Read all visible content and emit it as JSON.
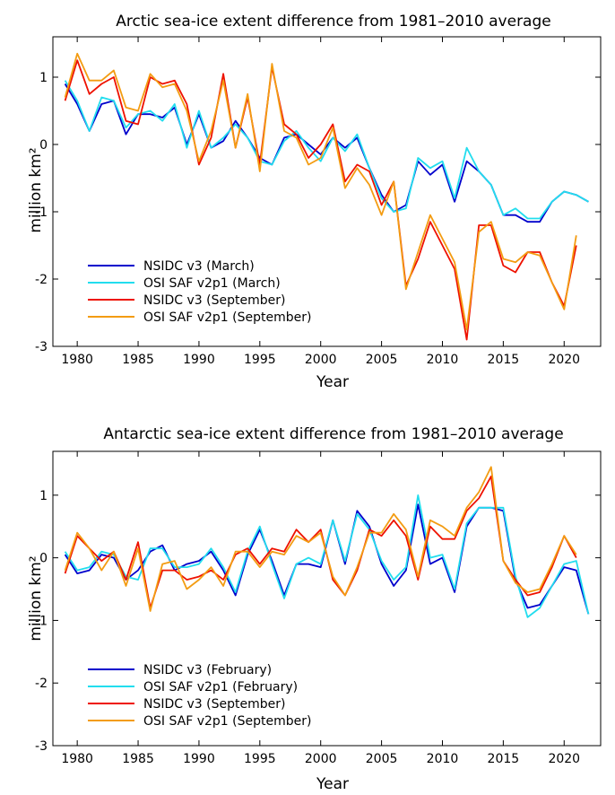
{
  "chart_data": [
    {
      "type": "line",
      "title": "Arctic sea-ice extent difference from 1981–2010 average",
      "xlabel": "Year",
      "ylabel": "million km²",
      "xlim": [
        1978,
        2023
      ],
      "ylim": [
        -3,
        1.6
      ],
      "x_ticks": [
        1980,
        1985,
        1990,
        1995,
        2000,
        2005,
        2010,
        2015,
        2020
      ],
      "y_ticks": [
        -3,
        -2,
        -1,
        0,
        1
      ],
      "legend_position": "lower-left",
      "series": [
        {
          "name": "NSIDC v3 (March)",
          "color": "#0000cc",
          "x": [
            1979,
            1980,
            1981,
            1982,
            1983,
            1984,
            1985,
            1986,
            1987,
            1988,
            1989,
            1990,
            1991,
            1992,
            1993,
            1994,
            1995,
            1996,
            1997,
            1998,
            1999,
            2000,
            2001,
            2002,
            2003,
            2004,
            2005,
            2006,
            2007,
            2008,
            2009,
            2010,
            2011,
            2012,
            2013,
            2014,
            2015,
            2016,
            2017,
            2018,
            2019,
            2020,
            2021,
            2022
          ],
          "y": [
            0.9,
            0.6,
            0.2,
            0.6,
            0.65,
            0.15,
            0.45,
            0.45,
            0.4,
            0.55,
            0.0,
            0.45,
            -0.05,
            0.05,
            0.35,
            0.1,
            -0.2,
            -0.3,
            0.1,
            0.15,
            0.0,
            -0.15,
            0.1,
            -0.05,
            0.1,
            -0.35,
            -0.75,
            -1.0,
            -0.9,
            -0.25,
            -0.45,
            -0.3,
            -0.85,
            -0.25,
            -0.4,
            -0.6,
            -1.05,
            -1.05,
            -1.15,
            -1.15,
            -0.85,
            -0.7,
            -0.75,
            -0.85
          ]
        },
        {
          "name": "OSI SAF v2p1 (March)",
          "color": "#22ddee",
          "x": [
            1979,
            1980,
            1981,
            1982,
            1983,
            1984,
            1985,
            1986,
            1987,
            1988,
            1989,
            1990,
            1991,
            1992,
            1993,
            1994,
            1995,
            1996,
            1997,
            1998,
            1999,
            2000,
            2001,
            2002,
            2003,
            2004,
            2005,
            2006,
            2007,
            2008,
            2009,
            2010,
            2011,
            2012,
            2013,
            2014,
            2015,
            2016,
            2017,
            2018,
            2019,
            2020,
            2021,
            2022
          ],
          "y": [
            0.95,
            0.65,
            0.2,
            0.7,
            0.65,
            0.25,
            0.45,
            0.5,
            0.35,
            0.6,
            -0.05,
            0.5,
            -0.05,
            0.1,
            0.3,
            0.1,
            -0.25,
            -0.3,
            0.05,
            0.2,
            -0.05,
            -0.25,
            0.1,
            -0.1,
            0.15,
            -0.35,
            -0.8,
            -1.0,
            -0.95,
            -0.2,
            -0.35,
            -0.25,
            -0.8,
            -0.05,
            -0.4,
            -0.6,
            -1.05,
            -0.95,
            -1.1,
            -1.1,
            -0.85,
            -0.7,
            -0.75,
            -0.85
          ]
        },
        {
          "name": "NSIDC v3 (September)",
          "color": "#ee1100",
          "x": [
            1979,
            1980,
            1981,
            1982,
            1983,
            1984,
            1985,
            1986,
            1987,
            1988,
            1989,
            1990,
            1991,
            1992,
            1993,
            1994,
            1995,
            1996,
            1997,
            1998,
            1999,
            2000,
            2001,
            2002,
            2003,
            2004,
            2005,
            2006,
            2007,
            2008,
            2009,
            2010,
            2011,
            2012,
            2013,
            2014,
            2015,
            2016,
            2017,
            2018,
            2019,
            2020,
            2021
          ],
          "y": [
            0.65,
            1.25,
            0.75,
            0.9,
            1.0,
            0.35,
            0.3,
            1.0,
            0.9,
            0.95,
            0.6,
            -0.3,
            0.1,
            1.05,
            -0.05,
            0.7,
            -0.3,
            1.15,
            0.3,
            0.15,
            -0.2,
            0.0,
            0.3,
            -0.55,
            -0.3,
            -0.4,
            -0.9,
            -0.55,
            -2.1,
            -1.7,
            -1.15,
            -1.5,
            -1.85,
            -2.9,
            -1.2,
            -1.2,
            -1.8,
            -1.9,
            -1.6,
            -1.6,
            -2.05,
            -2.4,
            -1.5
          ]
        },
        {
          "name": "OSI SAF v2p1 (September)",
          "color": "#f39c12",
          "x": [
            1979,
            1980,
            1981,
            1982,
            1983,
            1984,
            1985,
            1986,
            1987,
            1988,
            1989,
            1990,
            1991,
            1992,
            1993,
            1994,
            1995,
            1996,
            1997,
            1998,
            1999,
            2000,
            2001,
            2002,
            2003,
            2004,
            2005,
            2006,
            2007,
            2008,
            2009,
            2010,
            2011,
            2012,
            2013,
            2014,
            2015,
            2016,
            2017,
            2018,
            2019,
            2020,
            2021
          ],
          "y": [
            0.7,
            1.35,
            0.95,
            0.95,
            1.1,
            0.55,
            0.5,
            1.05,
            0.85,
            0.9,
            0.5,
            -0.25,
            0.2,
            0.95,
            -0.05,
            0.75,
            -0.4,
            1.2,
            0.2,
            0.1,
            -0.3,
            -0.2,
            0.25,
            -0.65,
            -0.35,
            -0.6,
            -1.05,
            -0.55,
            -2.15,
            -1.6,
            -1.05,
            -1.4,
            -1.75,
            -2.75,
            -1.3,
            -1.15,
            -1.7,
            -1.75,
            -1.6,
            -1.65,
            -2.05,
            -2.45,
            -1.35
          ]
        }
      ]
    },
    {
      "type": "line",
      "title": "Antarctic sea-ice extent difference from 1981–2010 average",
      "xlabel": "Year",
      "ylabel": "million km²",
      "xlim": [
        1978,
        2023
      ],
      "ylim": [
        -3,
        1.7
      ],
      "x_ticks": [
        1980,
        1985,
        1990,
        1995,
        2000,
        2005,
        2010,
        2015,
        2020
      ],
      "y_ticks": [
        -3,
        -2,
        -1,
        0,
        1
      ],
      "legend_position": "lower-left",
      "series": [
        {
          "name": "NSIDC v3 (February)",
          "color": "#0000cc",
          "x": [
            1979,
            1980,
            1981,
            1982,
            1983,
            1984,
            1985,
            1986,
            1987,
            1988,
            1989,
            1990,
            1991,
            1992,
            1993,
            1994,
            1995,
            1996,
            1997,
            1998,
            1999,
            2000,
            2001,
            2002,
            2003,
            2004,
            2005,
            2006,
            2007,
            2008,
            2009,
            2010,
            2011,
            2012,
            2013,
            2014,
            2015,
            2016,
            2017,
            2018,
            2019,
            2020,
            2021,
            2022
          ],
          "y": [
            0.05,
            -0.25,
            -0.2,
            0.05,
            0.0,
            -0.35,
            -0.2,
            0.1,
            0.2,
            -0.2,
            -0.1,
            -0.05,
            0.1,
            -0.2,
            -0.6,
            0.05,
            0.45,
            -0.05,
            -0.6,
            -0.1,
            -0.1,
            -0.15,
            0.6,
            -0.1,
            0.75,
            0.5,
            -0.1,
            -0.45,
            -0.2,
            0.85,
            -0.1,
            0.0,
            -0.55,
            0.5,
            0.8,
            0.8,
            0.75,
            -0.35,
            -0.8,
            -0.75,
            -0.45,
            -0.15,
            -0.2,
            -0.9
          ]
        },
        {
          "name": "OSI SAF v2p1 (February)",
          "color": "#22ddee",
          "x": [
            1979,
            1980,
            1981,
            1982,
            1983,
            1984,
            1985,
            1986,
            1987,
            1988,
            1989,
            1990,
            1991,
            1992,
            1993,
            1994,
            1995,
            1996,
            1997,
            1998,
            1999,
            2000,
            2001,
            2002,
            2003,
            2004,
            2005,
            2006,
            2007,
            2008,
            2009,
            2010,
            2011,
            2012,
            2013,
            2014,
            2015,
            2016,
            2017,
            2018,
            2019,
            2020,
            2021,
            2022
          ],
          "y": [
            0.1,
            -0.2,
            -0.15,
            0.1,
            0.05,
            -0.3,
            -0.35,
            0.15,
            0.15,
            -0.15,
            -0.15,
            -0.1,
            0.15,
            -0.15,
            -0.55,
            0.1,
            0.5,
            -0.1,
            -0.65,
            -0.1,
            0.0,
            -0.1,
            0.6,
            -0.05,
            0.7,
            0.45,
            -0.05,
            -0.35,
            -0.15,
            1.0,
            0.0,
            0.05,
            -0.5,
            0.55,
            0.8,
            0.8,
            0.8,
            -0.3,
            -0.95,
            -0.8,
            -0.45,
            -0.1,
            -0.05,
            -0.9
          ]
        },
        {
          "name": "NSIDC v3 (September)",
          "color": "#ee1100",
          "x": [
            1979,
            1980,
            1981,
            1982,
            1983,
            1984,
            1985,
            1986,
            1987,
            1988,
            1989,
            1990,
            1991,
            1992,
            1993,
            1994,
            1995,
            1996,
            1997,
            1998,
            1999,
            2000,
            2001,
            2002,
            2003,
            2004,
            2005,
            2006,
            2007,
            2008,
            2009,
            2010,
            2011,
            2012,
            2013,
            2014,
            2015,
            2016,
            2017,
            2018,
            2019,
            2020,
            2021
          ],
          "y": [
            -0.25,
            0.35,
            0.15,
            -0.05,
            0.1,
            -0.35,
            0.25,
            -0.8,
            -0.2,
            -0.2,
            -0.35,
            -0.3,
            -0.2,
            -0.35,
            0.05,
            0.15,
            -0.1,
            0.15,
            0.1,
            0.45,
            0.25,
            0.45,
            -0.35,
            -0.6,
            -0.2,
            0.45,
            0.35,
            0.6,
            0.35,
            -0.35,
            0.5,
            0.3,
            0.3,
            0.75,
            0.95,
            1.3,
            -0.05,
            -0.35,
            -0.6,
            -0.55,
            -0.15,
            0.35,
            0.0
          ]
        },
        {
          "name": "OSI SAF v2p1 (September)",
          "color": "#f39c12",
          "x": [
            1979,
            1980,
            1981,
            1982,
            1983,
            1984,
            1985,
            1986,
            1987,
            1988,
            1989,
            1990,
            1991,
            1992,
            1993,
            1994,
            1995,
            1996,
            1997,
            1998,
            1999,
            2000,
            2001,
            2002,
            2003,
            2004,
            2005,
            2006,
            2007,
            2008,
            2009,
            2010,
            2011,
            2012,
            2013,
            2014,
            2015,
            2016,
            2017,
            2018,
            2019,
            2020,
            2021
          ],
          "y": [
            -0.2,
            0.4,
            0.15,
            -0.2,
            0.1,
            -0.45,
            0.15,
            -0.85,
            -0.1,
            -0.05,
            -0.5,
            -0.35,
            -0.15,
            -0.45,
            0.1,
            0.1,
            -0.15,
            0.1,
            0.05,
            0.35,
            0.25,
            0.4,
            -0.3,
            -0.6,
            -0.15,
            0.4,
            0.4,
            0.7,
            0.45,
            -0.3,
            0.6,
            0.5,
            0.35,
            0.8,
            1.05,
            1.45,
            -0.05,
            -0.4,
            -0.55,
            -0.5,
            -0.1,
            0.35,
            0.05
          ]
        }
      ]
    }
  ]
}
